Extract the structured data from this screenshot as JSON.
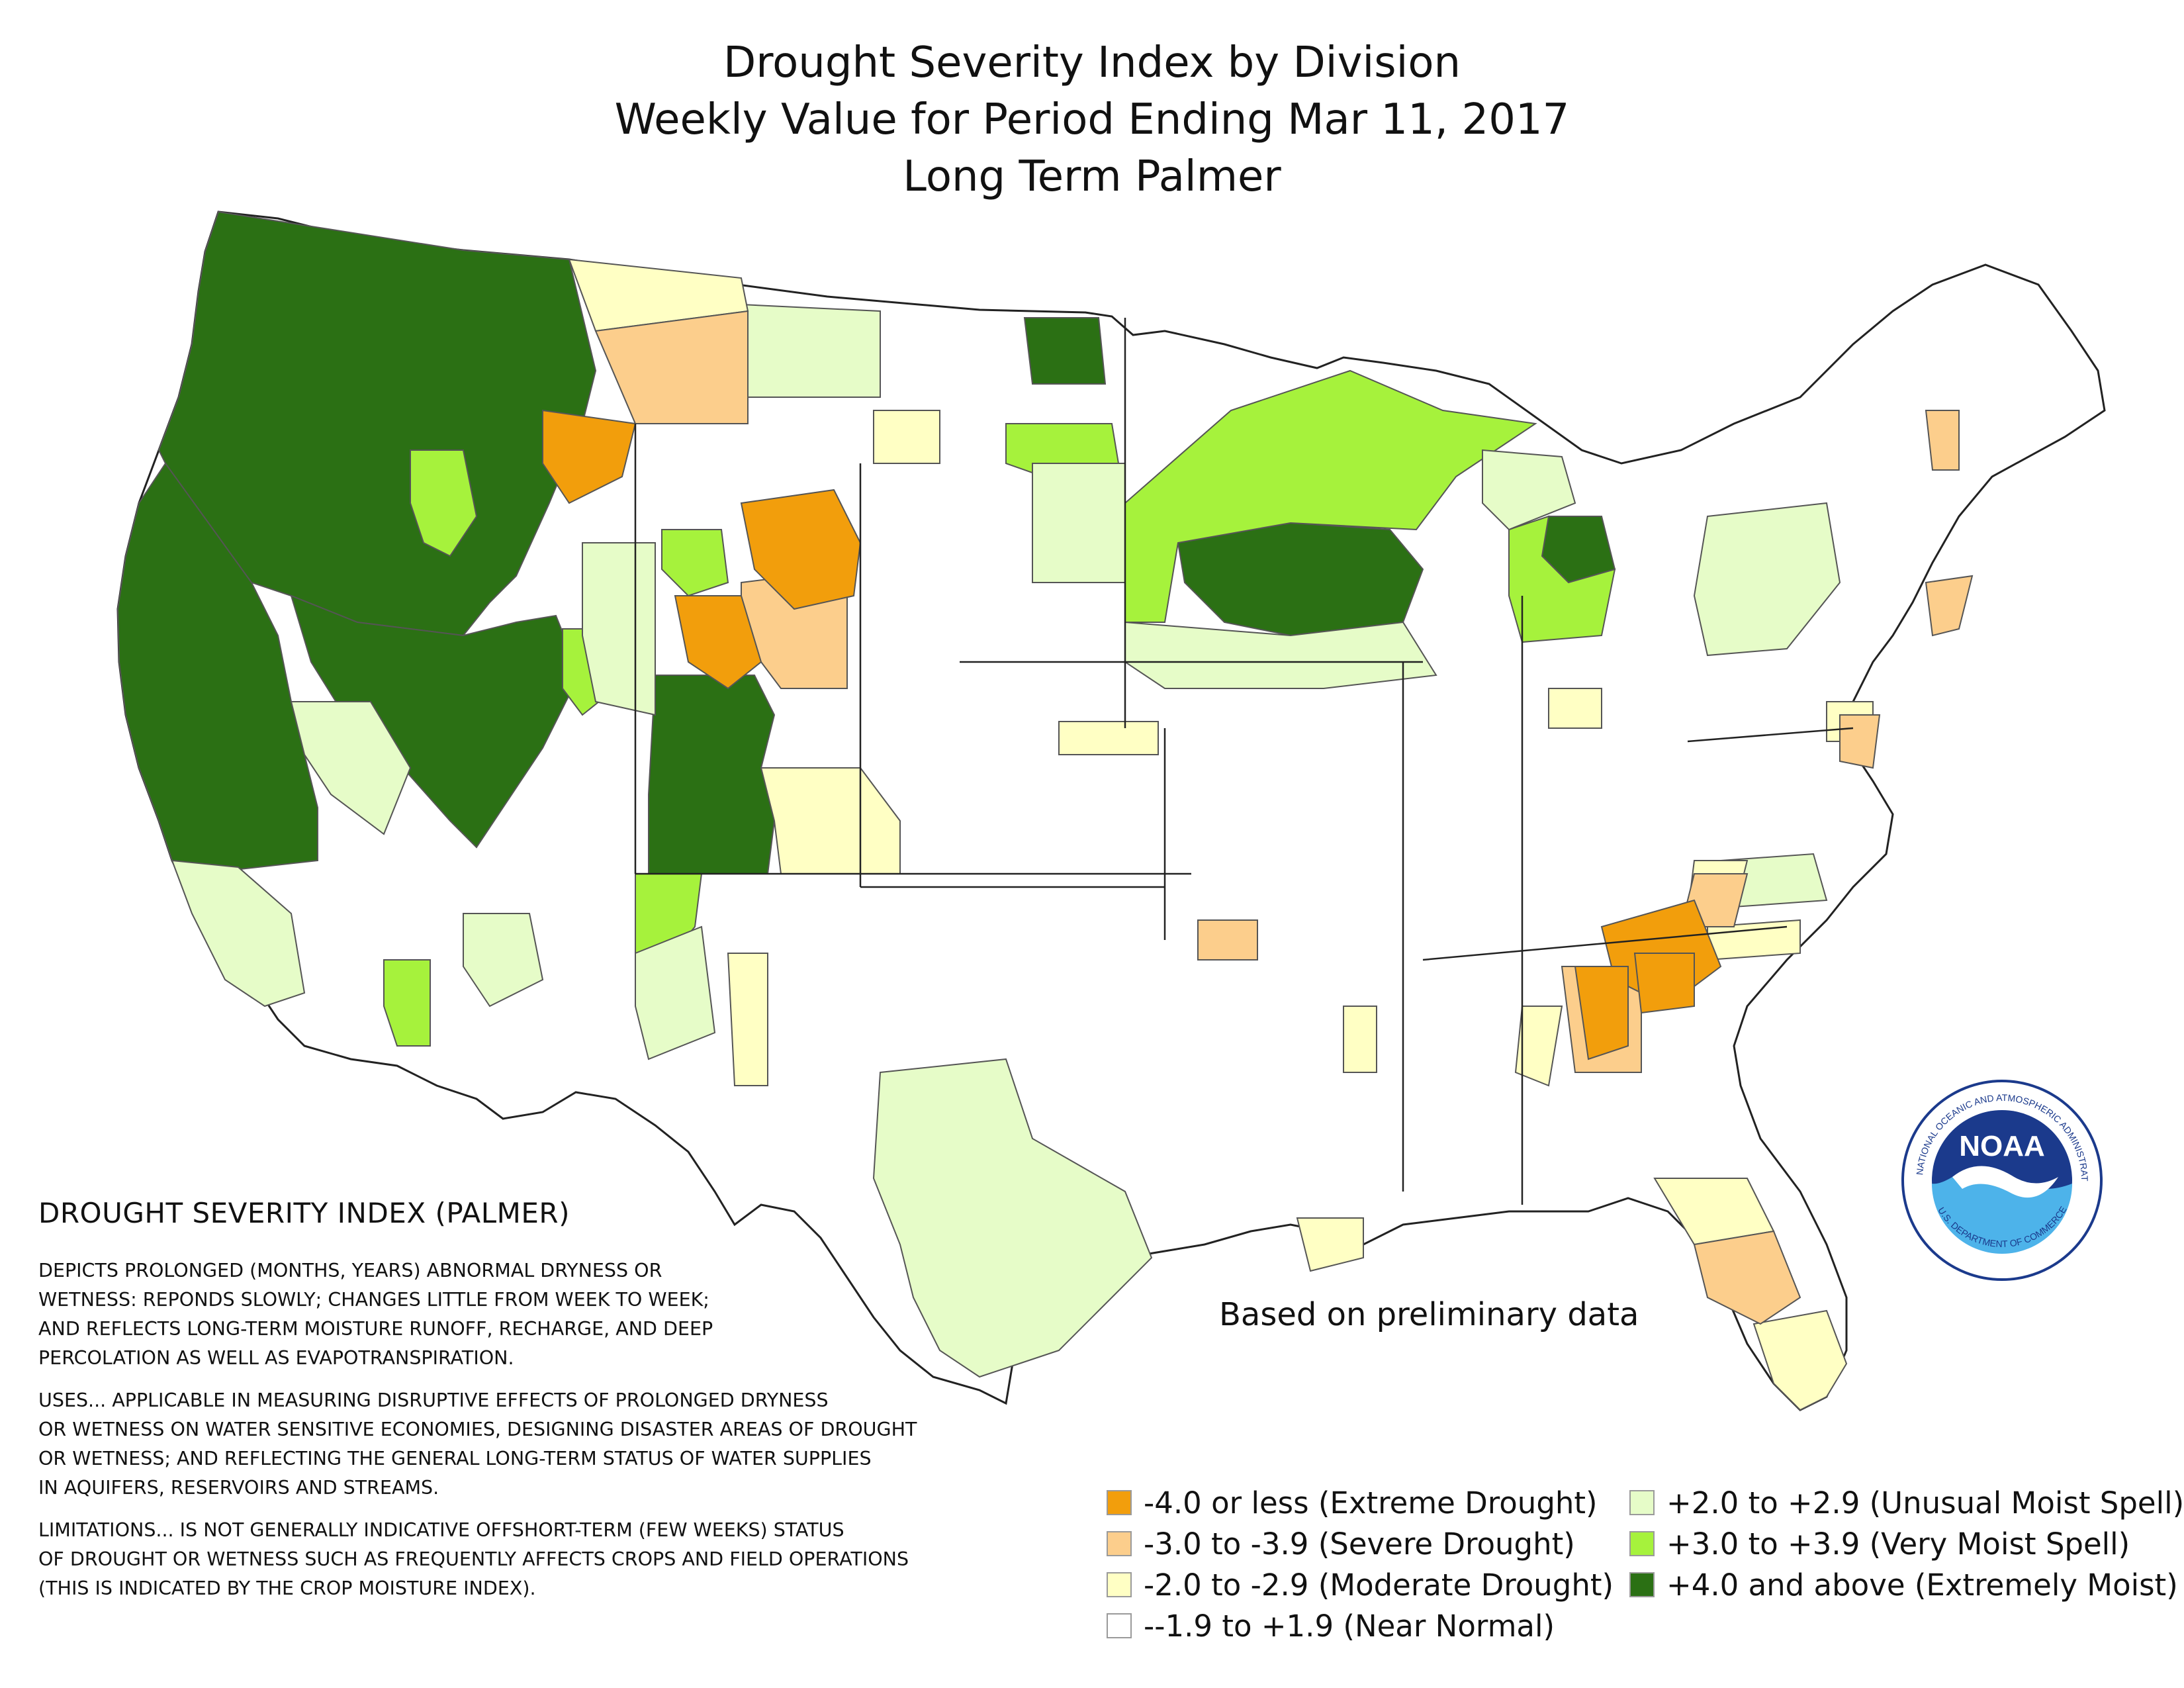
{
  "title": {
    "line1": "Drought Severity Index by Division",
    "line2": "Weekly Value for Period Ending Mar 11, 2017",
    "line3": "Long Term Palmer"
  },
  "annotation": "Based on preliminary data",
  "info": {
    "heading": "DROUGHT SEVERITY INDEX (PALMER)",
    "para1": [
      "DEPICTS PROLONGED (MONTHS, YEARS) ABNORMAL DRYNESS OR",
      "WETNESS: REPONDS SLOWLY; CHANGES LITTLE FROM WEEK TO WEEK;",
      "AND REFLECTS LONG-TERM MOISTURE RUNOFF, RECHARGE, AND DEEP",
      "PERCOLATION AS WELL AS EVAPOTRANSPIRATION."
    ],
    "para2": [
      "USES... APPLICABLE IN MEASURING DISRUPTIVE EFFECTS OF PROLONGED DRYNESS",
      "OR WETNESS ON WATER SENSITIVE ECONOMIES, DESIGNING DISASTER AREAS OF DROUGHT",
      "OR WETNESS; AND REFLECTING THE GENERAL LONG-TERM STATUS OF WATER SUPPLIES",
      "IN AQUIFERS, RESERVOIRS AND STREAMS."
    ],
    "para3": [
      "LIMITATIONS... IS NOT GENERALLY INDICATIVE OFFSHORT-TERM (FEW WEEKS) STATUS",
      "OF DROUGHT OR WETNESS SUCH AS FREQUENTLY AFFECTS CROPS AND FIELD OPERATIONS",
      "(THIS IS INDICATED BY THE CROP MOISTURE INDEX)."
    ]
  },
  "legend": [
    {
      "label": "-4.0 or less (Extreme Drought)",
      "color": "#f29e0c"
    },
    {
      "label": "-3.0 to -3.9 (Severe Drought)",
      "color": "#fcce8c"
    },
    {
      "label": "-2.0 to -2.9 (Moderate Drought)",
      "color": "#ffffc4"
    },
    {
      "label": "--1.9 to +1.9 (Near Normal)",
      "color": "#ffffff"
    },
    {
      "label": "+2.0 to +2.9 (Unusual Moist Spell)",
      "color": "#e6fcc8"
    },
    {
      "label": "+3.0 to +3.9 (Very Moist Spell)",
      "color": "#a6f23c"
    },
    {
      "label": "+4.0 and above (Extremely Moist)",
      "color": "#2b7014"
    }
  ],
  "logo": {
    "text": "NOAA",
    "ring_text": "NATIONAL OCEANIC AND ATMOSPHERIC ADMINISTRATION",
    "ring_text_bottom": "U.S. DEPARTMENT OF COMMERCE"
  }
}
